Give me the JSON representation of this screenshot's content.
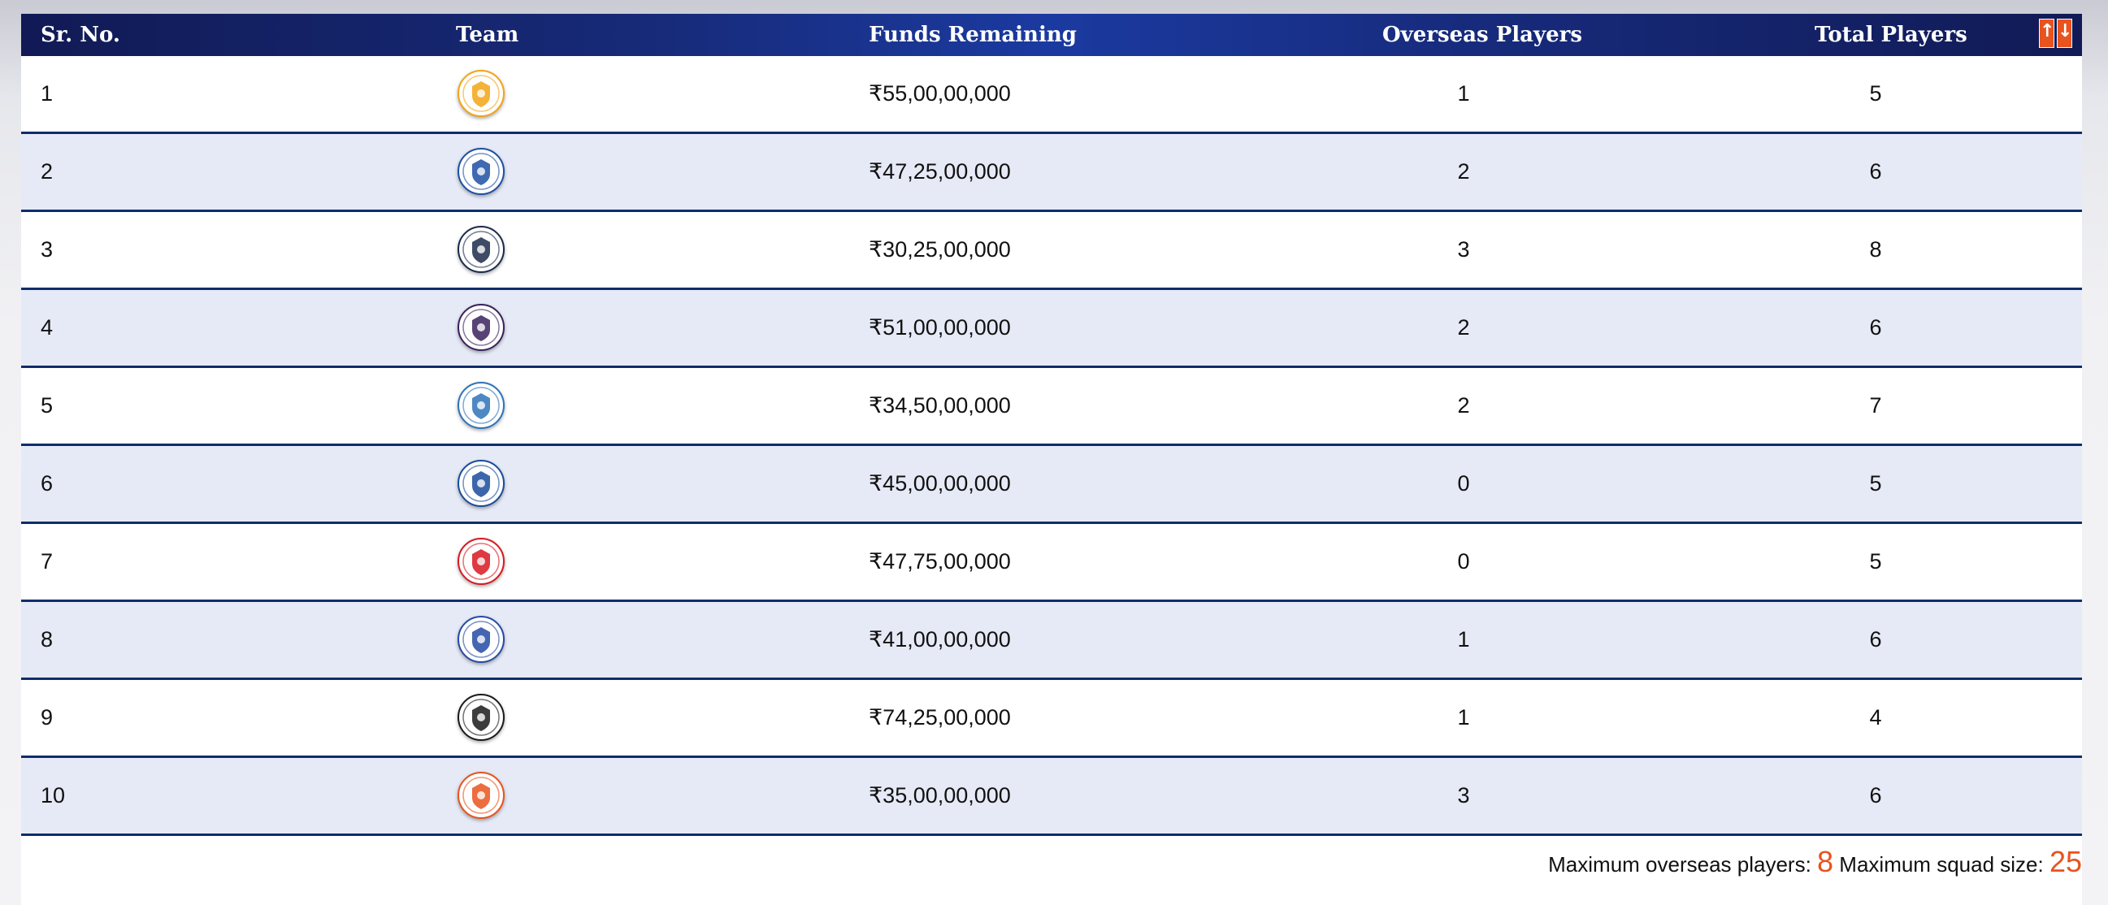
{
  "table": {
    "columns": {
      "sr_no": "Sr. No.",
      "team": "Team",
      "funds_remaining": "Funds Remaining",
      "overseas_players": "Overseas Players",
      "total_players": "Total Players"
    },
    "sort_icons": {
      "up": "↑",
      "down": "↓"
    },
    "rows": [
      {
        "sr": "1",
        "logo": "csk-logo",
        "logo_color": "#f2a516",
        "funds": "₹55,00,00,000",
        "overseas": "1",
        "total": "5"
      },
      {
        "sr": "2",
        "logo": "dc-logo",
        "logo_color": "#1d4fa3",
        "funds": "₹47,25,00,000",
        "overseas": "2",
        "total": "6"
      },
      {
        "sr": "3",
        "logo": "gt-logo",
        "logo_color": "#1b2b4b",
        "funds": "₹30,25,00,000",
        "overseas": "3",
        "total": "8"
      },
      {
        "sr": "4",
        "logo": "kkr-logo",
        "logo_color": "#3a225d",
        "funds": "₹51,00,00,000",
        "overseas": "2",
        "total": "6"
      },
      {
        "sr": "5",
        "logo": "lsg-logo",
        "logo_color": "#2e73b8",
        "funds": "₹34,50,00,000",
        "overseas": "2",
        "total": "7"
      },
      {
        "sr": "6",
        "logo": "mi-logo",
        "logo_color": "#1a4b9c",
        "funds": "₹45,00,00,000",
        "overseas": "0",
        "total": "5"
      },
      {
        "sr": "7",
        "logo": "pbks-logo",
        "logo_color": "#d71920",
        "funds": "₹47,75,00,000",
        "overseas": "0",
        "total": "5"
      },
      {
        "sr": "8",
        "logo": "rr-logo",
        "logo_color": "#254aa5",
        "funds": "₹41,00,00,000",
        "overseas": "1",
        "total": "6"
      },
      {
        "sr": "9",
        "logo": "rcb-logo",
        "logo_color": "#1a1a1a",
        "funds": "₹74,25,00,000",
        "overseas": "1",
        "total": "4"
      },
      {
        "sr": "10",
        "logo": "srh-logo",
        "logo_color": "#e8531e",
        "funds": "₹35,00,00,000",
        "overseas": "3",
        "total": "6"
      }
    ]
  },
  "footer": {
    "overseas_label": "Maximum overseas players:",
    "overseas_value": "8",
    "squad_label": "Maximum squad size:",
    "squad_value": "25"
  },
  "colors": {
    "header_dark": "#111a55",
    "header_mid": "#1b3aa0",
    "row_alt": "#e6eaf6",
    "row_border": "#0f2d6b",
    "accent": "#e8531e"
  }
}
